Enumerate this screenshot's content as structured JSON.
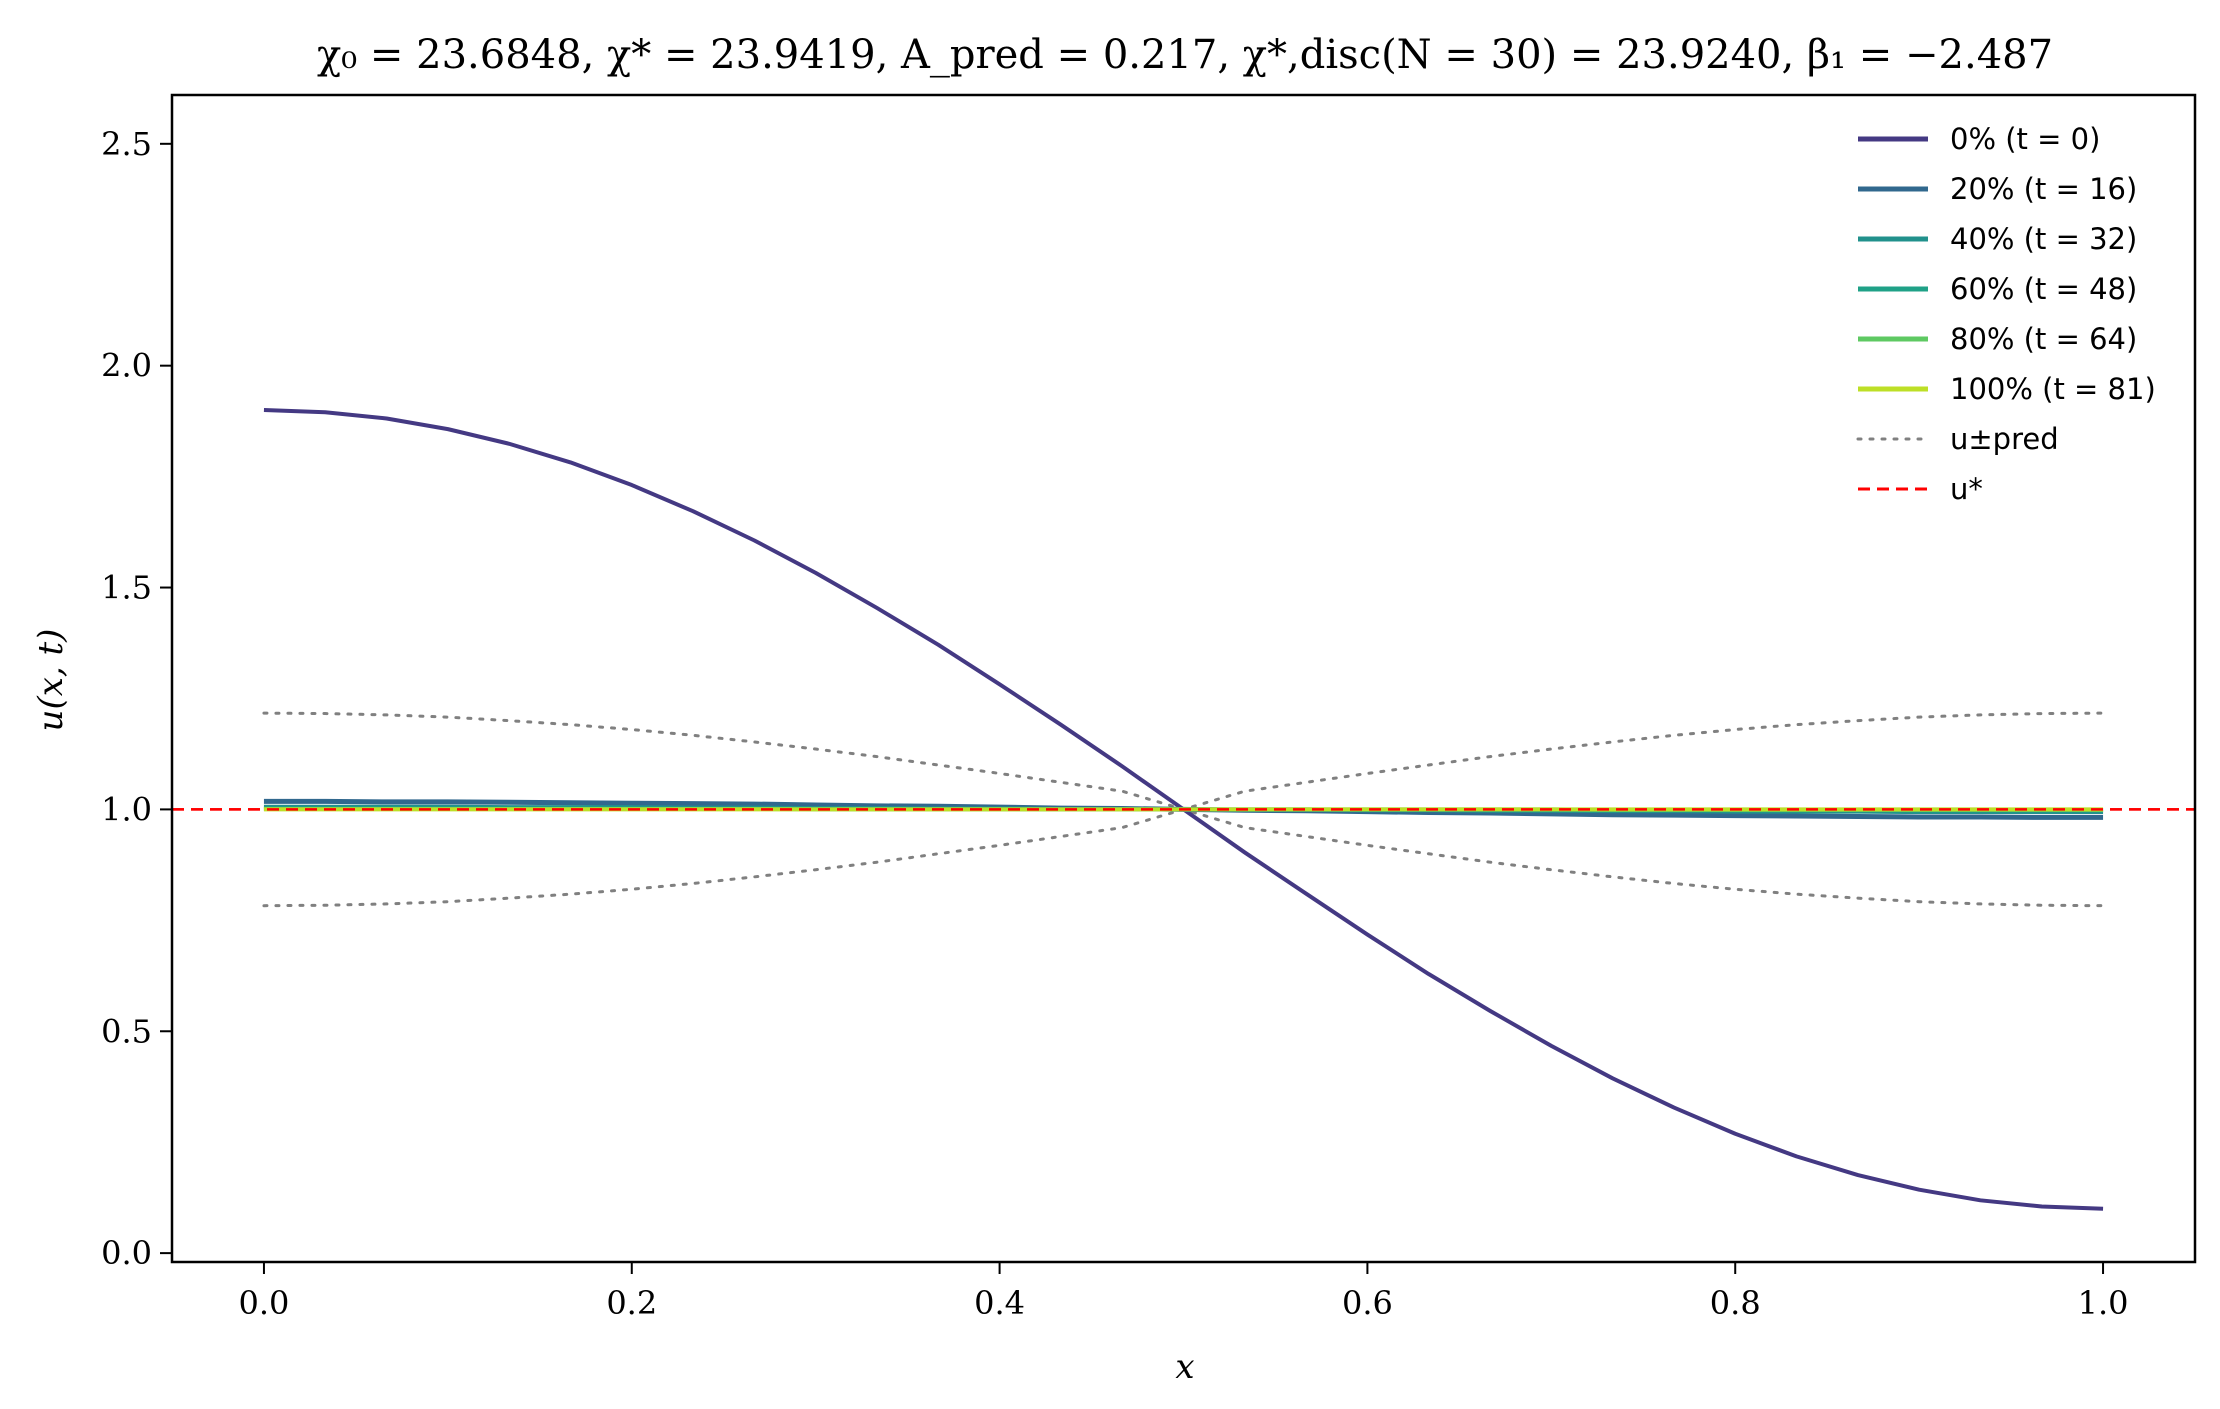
{
  "chart_data": {
    "type": "line",
    "title": "χ₀ = 23.6848,  χ* = 23.9419,  A_pred = 0.217,  χ*,disc(N = 30) = 23.9240,  β₁ = −2.487",
    "xlabel": "x",
    "ylabel": "u(x, t)",
    "xlim": [
      -0.05,
      1.05
    ],
    "ylim": [
      -0.02,
      2.61
    ],
    "xticks": [
      0.0,
      0.2,
      0.4,
      0.6,
      0.8,
      1.0
    ],
    "xtick_labels": [
      "0.0",
      "0.2",
      "0.4",
      "0.6",
      "0.8",
      "1.0"
    ],
    "yticks": [
      0.0,
      0.5,
      1.0,
      1.5,
      2.0,
      2.5
    ],
    "ytick_labels": [
      "0.0",
      "0.5",
      "1.0",
      "1.5",
      "2.0",
      "2.5"
    ],
    "grid": false,
    "legend_position": "top-right",
    "x": [
      0.0,
      0.0333,
      0.0667,
      0.1,
      0.1333,
      0.1667,
      0.2,
      0.2333,
      0.2667,
      0.3,
      0.3333,
      0.3667,
      0.4,
      0.4333,
      0.4667,
      0.5,
      0.5333,
      0.5667,
      0.6,
      0.6333,
      0.6667,
      0.7,
      0.7333,
      0.7667,
      0.8,
      0.8333,
      0.8667,
      0.9,
      0.9333,
      0.9667,
      1.0
    ],
    "series": [
      {
        "name": "0% (t = 0)",
        "color": "#443983",
        "style": "solid",
        "width": 4,
        "values": [
          1.9,
          1.895,
          1.881,
          1.857,
          1.824,
          1.782,
          1.731,
          1.672,
          1.606,
          1.533,
          1.454,
          1.371,
          1.282,
          1.191,
          1.097,
          1.0,
          0.903,
          0.81,
          0.718,
          0.629,
          0.546,
          0.467,
          0.394,
          0.328,
          0.269,
          0.218,
          0.176,
          0.143,
          0.119,
          0.105,
          0.1
        ]
      },
      {
        "name": "20% (t = 16)",
        "color": "#31688e",
        "style": "solid",
        "width": 5,
        "values": [
          1.018,
          1.018,
          1.017,
          1.017,
          1.016,
          1.015,
          1.014,
          1.013,
          1.012,
          1.01,
          1.008,
          1.007,
          1.005,
          1.003,
          1.002,
          1.0,
          0.998,
          0.997,
          0.995,
          0.993,
          0.992,
          0.99,
          0.988,
          0.987,
          0.986,
          0.985,
          0.984,
          0.983,
          0.983,
          0.982,
          0.982
        ]
      },
      {
        "name": "40% (t = 32)",
        "color": "#21918c",
        "style": "solid",
        "width": 4,
        "values": [
          1.006,
          1.006,
          1.006,
          1.006,
          1.005,
          1.005,
          1.005,
          1.004,
          1.004,
          1.003,
          1.003,
          1.002,
          1.002,
          1.001,
          1.001,
          1.0,
          0.999,
          0.999,
          0.998,
          0.998,
          0.997,
          0.997,
          0.996,
          0.996,
          0.995,
          0.995,
          0.995,
          0.994,
          0.994,
          0.994,
          0.994
        ]
      },
      {
        "name": "60% (t = 48)",
        "color": "#1fa187",
        "style": "solid",
        "width": 4,
        "values": [
          1.002,
          1.002,
          1.002,
          1.002,
          1.002,
          1.002,
          1.002,
          1.001,
          1.001,
          1.001,
          1.001,
          1.001,
          1.001,
          1.0,
          1.0,
          1.0,
          1.0,
          1.0,
          0.999,
          0.999,
          0.999,
          0.999,
          0.999,
          0.999,
          0.998,
          0.998,
          0.998,
          0.998,
          0.998,
          0.998,
          0.998
        ]
      },
      {
        "name": "80% (t = 64)",
        "color": "#5ec962",
        "style": "solid",
        "width": 4,
        "values": [
          1.001,
          1.001,
          1.001,
          1.001,
          1.001,
          1.001,
          1.001,
          1.001,
          1.001,
          1.0,
          1.0,
          1.0,
          1.0,
          1.0,
          1.0,
          1.0,
          1.0,
          1.0,
          1.0,
          1.0,
          1.0,
          1.0,
          0.999,
          0.999,
          0.999,
          0.999,
          0.999,
          0.999,
          0.999,
          0.999,
          0.999
        ]
      },
      {
        "name": "100% (t = 81)",
        "color": "#bddf26",
        "style": "solid",
        "width": 4,
        "values": [
          1.0,
          1.0,
          1.0,
          1.0,
          1.0,
          1.0,
          1.0,
          1.0,
          1.0,
          1.0,
          1.0,
          1.0,
          1.0,
          1.0,
          1.0,
          1.0,
          1.0,
          1.0,
          1.0,
          1.0,
          1.0,
          1.0,
          1.0,
          1.0,
          1.0,
          1.0,
          1.0,
          1.0,
          1.0,
          1.0,
          1.0
        ]
      },
      {
        "name": "u±pred",
        "color": "#808080",
        "style": "dotted",
        "width": 3,
        "values": [
          1.217,
          1.216,
          1.213,
          1.208,
          1.2,
          1.191,
          1.18,
          1.167,
          1.152,
          1.136,
          1.119,
          1.1,
          1.081,
          1.061,
          1.041,
          1.0,
          0.959,
          0.939,
          0.919,
          0.9,
          0.881,
          0.864,
          0.848,
          0.833,
          0.82,
          0.809,
          0.8,
          0.792,
          0.787,
          0.784,
          0.783
        ]
      },
      {
        "name": "",
        "legend": false,
        "color": "#808080",
        "style": "dotted",
        "width": 3,
        "values": [
          0.783,
          0.784,
          0.787,
          0.792,
          0.8,
          0.809,
          0.82,
          0.833,
          0.848,
          0.864,
          0.881,
          0.9,
          0.919,
          0.939,
          0.959,
          1.0,
          1.041,
          1.061,
          1.081,
          1.1,
          1.119,
          1.136,
          1.152,
          1.167,
          1.18,
          1.191,
          1.2,
          1.208,
          1.213,
          1.216,
          1.217
        ]
      }
    ],
    "hlines": [
      {
        "name": "u*",
        "y": 1.0,
        "color": "#ff0000",
        "style": "dashed"
      }
    ]
  }
}
